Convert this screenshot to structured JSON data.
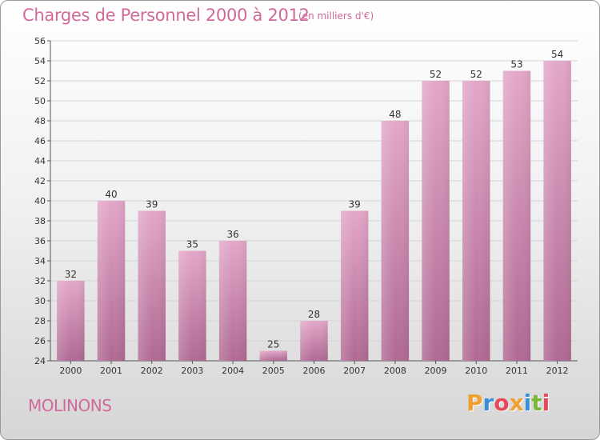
{
  "header": {
    "title": "Charges de Personnel 2000 à 2012",
    "subtitle": "(en milliers d'€)"
  },
  "footer": {
    "commune": "MOLINONS",
    "logo": "Proxiti"
  },
  "colors": {
    "bar_light": "#e3a7c9",
    "bar_dark": "#b06a93",
    "accent_text": "#d06a9a",
    "logo_letters": [
      "#f0a030",
      "#3a8fd8",
      "#e44a5a",
      "#f0a030",
      "#3a8fd8",
      "#7ab83a",
      "#e44a5a"
    ]
  },
  "chart_data": {
    "type": "bar",
    "title": "Charges de Personnel 2000 à 2012",
    "subtitle": "(en milliers d'€)",
    "categories": [
      "2000",
      "2001",
      "2002",
      "2003",
      "2004",
      "2005",
      "2006",
      "2007",
      "2008",
      "2009",
      "2010",
      "2011",
      "2012"
    ],
    "values": [
      32,
      40,
      39,
      35,
      36,
      25,
      28,
      39,
      48,
      52,
      52,
      53,
      54
    ],
    "ylim": [
      24,
      56
    ],
    "yticks": [
      24,
      26,
      28,
      30,
      32,
      34,
      36,
      38,
      40,
      42,
      44,
      46,
      48,
      50,
      52,
      54,
      56
    ],
    "grid": true,
    "xlabel": "",
    "ylabel": ""
  }
}
